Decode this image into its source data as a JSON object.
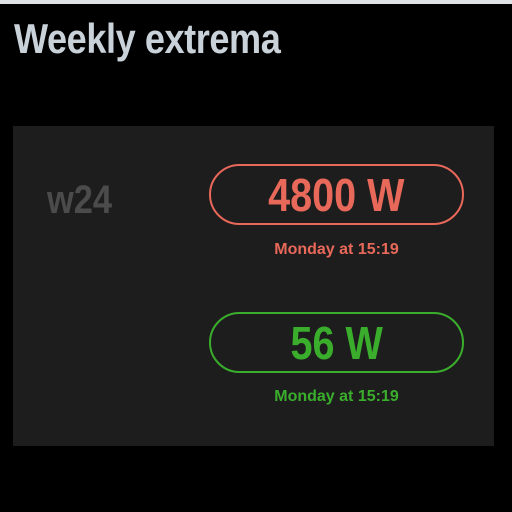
{
  "title": "Weekly extrema",
  "week": "w24",
  "max": {
    "value": "4800 W",
    "time": "Monday at 15:19",
    "color": "#e8685a"
  },
  "min": {
    "value": "56 W",
    "time": "Monday at 15:19",
    "color": "#3aae2c"
  }
}
